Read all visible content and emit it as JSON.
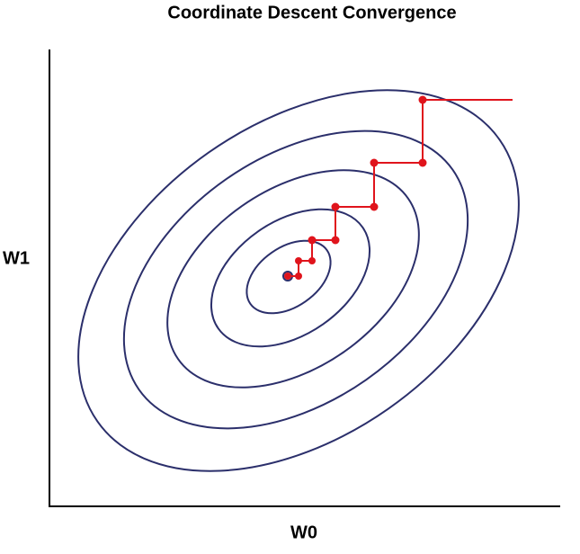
{
  "title": "Coordinate Descent Convergence",
  "x_label": "W0",
  "y_label": "W1"
}
